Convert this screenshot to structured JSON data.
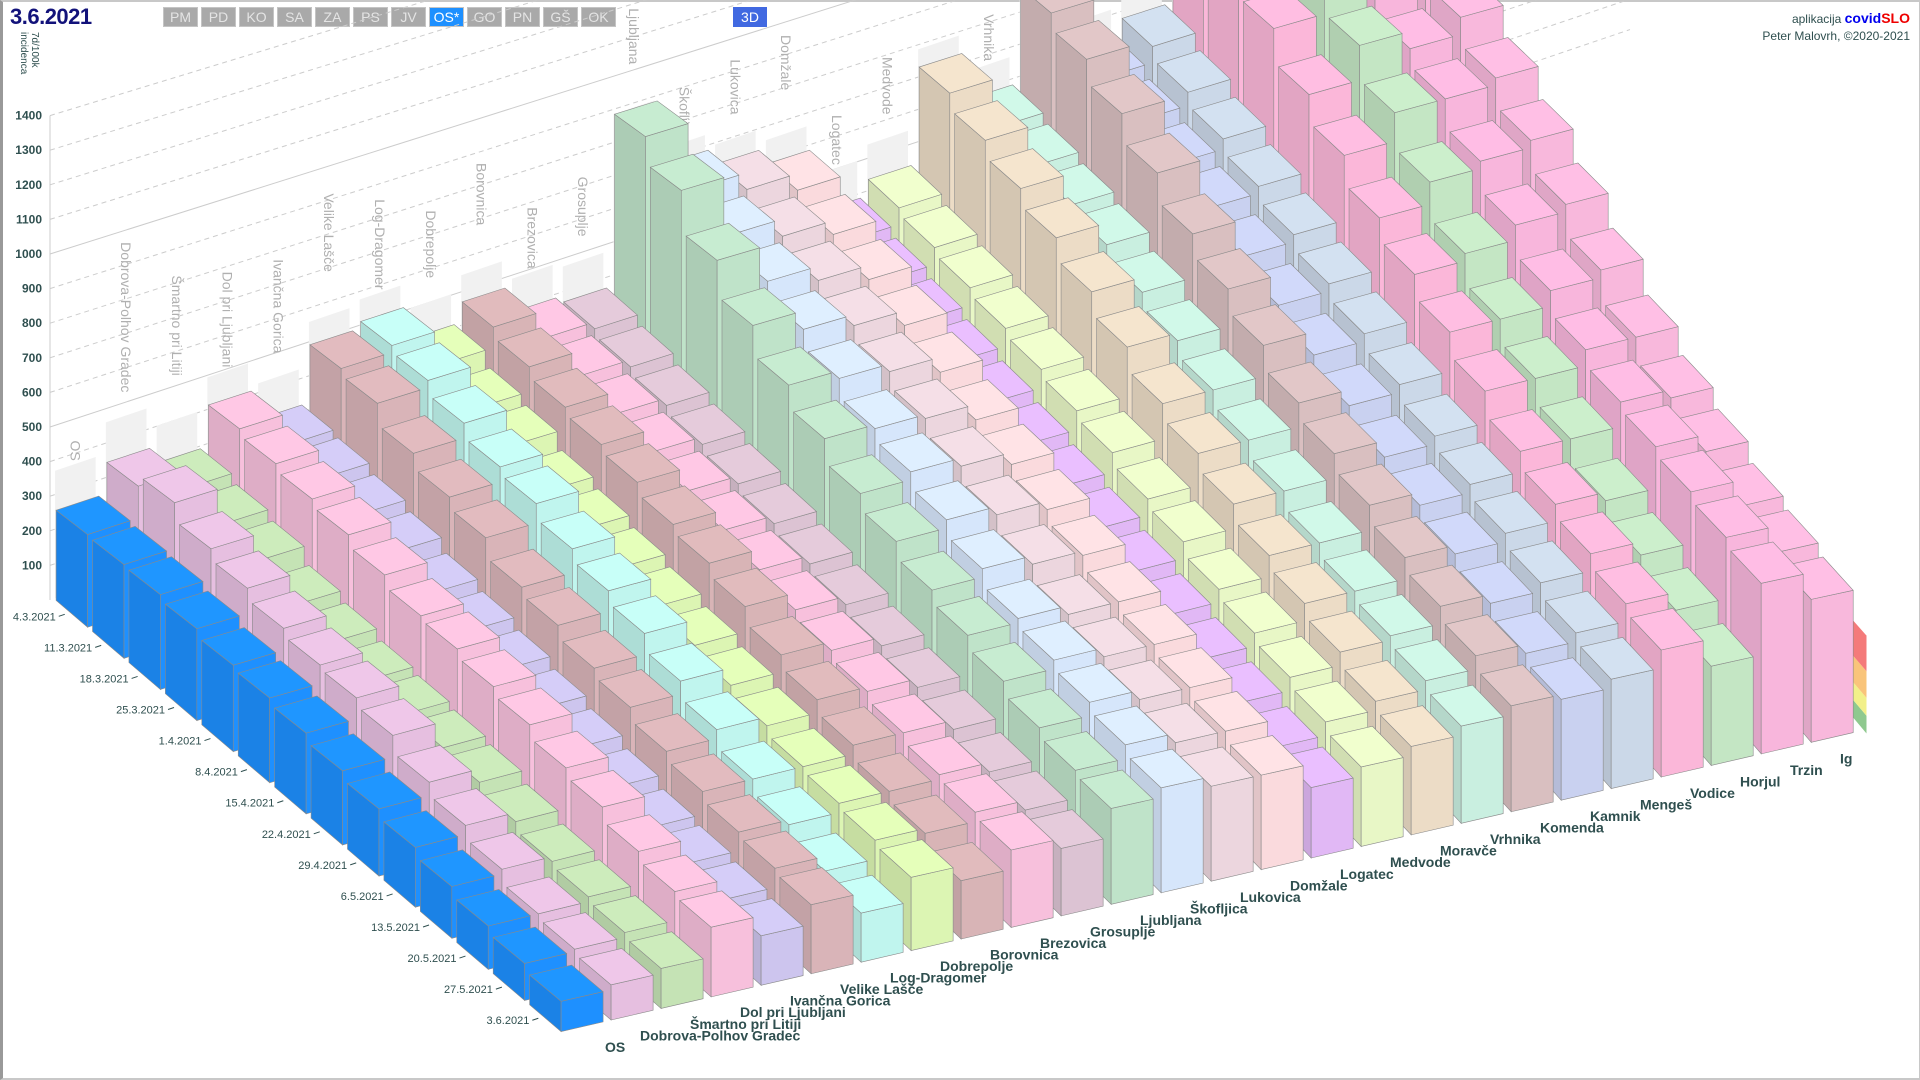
{
  "header": {
    "date": "3.6.2021",
    "region_buttons": [
      "PM",
      "PD",
      "KO",
      "SA",
      "ZA",
      "PS",
      "JV",
      "OS*",
      "GO",
      "PN",
      "GŠ",
      "OK"
    ],
    "active_region": "OS*",
    "view_button": "3D",
    "credit_prefix": "aplikacija",
    "credit_brand_a": "covid",
    "credit_brand_b": "SLO",
    "credit_author": "Peter Malovrh, ©2020-2021"
  },
  "chart_data": {
    "type": "bar",
    "subtype": "3d-bar",
    "ylabel_line1": "7d/100k",
    "ylabel_line2": "incidenca",
    "yticks": [
      100,
      200,
      300,
      400,
      500,
      600,
      700,
      800,
      900,
      1000,
      1100,
      1200,
      1300,
      1400
    ],
    "ylim": [
      0,
      1400
    ],
    "dates": [
      "4.3.2021",
      "11.3.2021",
      "18.3.2021",
      "25.3.2021",
      "1.4.2021",
      "8.4.2021",
      "15.4.2021",
      "22.4.2021",
      "29.4.2021",
      "6.5.2021",
      "13.5.2021",
      "20.5.2021",
      "27.5.2021",
      "3.6.2021"
    ],
    "threshold_band_colors": [
      "#8fc98f",
      "#f2f08a",
      "#f9c47a",
      "#f47a7a"
    ],
    "threshold_bands": [
      [
        0,
        40
      ],
      [
        40,
        80
      ],
      [
        80,
        140
      ],
      [
        140,
        220
      ]
    ],
    "series": [
      {
        "name": "OS",
        "color": "#1e90ff",
        "values": [
          260,
          255,
          250,
          235,
          215,
          205,
          190,
          170,
          150,
          130,
          110,
          90,
          75,
          60
        ]
      },
      {
        "name": "Dobrova-Polhov Gradec",
        "color": "#e6bfe0",
        "values": [
          350,
          380,
          330,
          300,
          270,
          250,
          240,
          220,
          180,
          150,
          120,
          90,
          80,
          70
        ]
      },
      {
        "name": "Šmartno pri Litiji",
        "color": "#c5e3b5",
        "values": [
          300,
          280,
          260,
          220,
          200,
          180,
          170,
          160,
          150,
          130,
          110,
          100,
          90,
          80
        ]
      },
      {
        "name": "Dol pri Ljubljani",
        "color": "#f7c0dc",
        "values": [
          420,
          400,
          380,
          360,
          330,
          300,
          290,
          270,
          250,
          220,
          200,
          170,
          150,
          140
        ]
      },
      {
        "name": "Ivančna Gorica",
        "color": "#cdc5ee",
        "values": [
          330,
          320,
          300,
          280,
          250,
          230,
          210,
          190,
          170,
          150,
          130,
          120,
          110,
          100
        ]
      },
      {
        "name": "Velike Lašče",
        "color": "#d9b4b8",
        "values": [
          500,
          480,
          420,
          380,
          350,
          300,
          280,
          250,
          230,
          200,
          180,
          160,
          150,
          140
        ]
      },
      {
        "name": "Log-Dragomer",
        "color": "#c0f5ee",
        "values": [
          520,
          500,
          460,
          420,
          400,
          360,
          330,
          300,
          260,
          220,
          180,
          150,
          120,
          100
        ]
      },
      {
        "name": "Dobrepolje",
        "color": "#dcf5b3",
        "values": [
          420,
          380,
          360,
          320,
          300,
          280,
          260,
          240,
          220,
          200,
          180,
          170,
          160,
          150
        ]
      },
      {
        "name": "Borovnica",
        "color": "#d8b4b6",
        "values": [
          480,
          450,
          420,
          400,
          380,
          350,
          330,
          300,
          260,
          230,
          200,
          170,
          150,
          120
        ]
      },
      {
        "name": "Brezovica",
        "color": "#f7c0dc",
        "values": [
          400,
          380,
          360,
          340,
          320,
          300,
          280,
          260,
          240,
          220,
          200,
          180,
          170,
          160
        ]
      },
      {
        "name": "Grosuplje",
        "color": "#dcc3d3",
        "values": [
          380,
          360,
          340,
          320,
          300,
          280,
          260,
          240,
          220,
          200,
          180,
          160,
          150,
          140
        ]
      },
      {
        "name": "Ljubljana",
        "color": "#bfe3c9",
        "values": [
          900,
          820,
          700,
          600,
          520,
          460,
          400,
          360,
          320,
          290,
          260,
          230,
          210,
          200
        ]
      },
      {
        "name": "Škofljica",
        "color": "#d6e6fb",
        "values": [
          700,
          650,
          600,
          550,
          500,
          450,
          420,
          380,
          340,
          300,
          280,
          260,
          240,
          220
        ]
      },
      {
        "name": "Lukovica",
        "color": "#ecd6de",
        "values": [
          650,
          600,
          560,
          520,
          480,
          440,
          400,
          360,
          320,
          280,
          260,
          240,
          220,
          200
        ]
      },
      {
        "name": "Domžale",
        "color": "#fadadd",
        "values": [
          600,
          560,
          520,
          480,
          440,
          400,
          370,
          340,
          310,
          280,
          260,
          240,
          220,
          200
        ]
      },
      {
        "name": "Logatec",
        "color": "#e1b8f5",
        "values": [
          400,
          380,
          360,
          340,
          320,
          300,
          280,
          260,
          240,
          220,
          200,
          180,
          160,
          150
        ]
      },
      {
        "name": "Medvode",
        "color": "#e8f7c6",
        "values": [
          450,
          430,
          410,
          390,
          370,
          350,
          330,
          300,
          280,
          250,
          230,
          210,
          190,
          170
        ]
      },
      {
        "name": "Moravče",
        "color": "#ecdcc6",
        "values": [
          750,
          700,
          650,
          600,
          540,
          480,
          420,
          380,
          340,
          300,
          270,
          240,
          210,
          190
        ]
      },
      {
        "name": "Vrhnika",
        "color": "#c9efe0",
        "values": [
          600,
          580,
          560,
          540,
          500,
          460,
          420,
          380,
          340,
          300,
          270,
          250,
          230,
          210
        ]
      },
      {
        "name": "Komenda",
        "color": "#d9bfc0",
        "values": [
          900,
          850,
          780,
          700,
          620,
          560,
          500,
          440,
          400,
          360,
          320,
          290,
          260,
          230
        ]
      },
      {
        "name": "Kamnik",
        "color": "#c9d1f0",
        "values": [
          650,
          620,
          590,
          560,
          520,
          480,
          440,
          400,
          360,
          330,
          300,
          270,
          240,
          220
        ]
      },
      {
        "name": "Mengeš",
        "color": "#cbd8e8",
        "values": [
          700,
          660,
          620,
          580,
          540,
          500,
          460,
          420,
          380,
          350,
          320,
          290,
          260,
          240
        ]
      },
      {
        "name": "Vodice",
        "color": "#fbb7d9",
        "values": [
          1100,
          1000,
          900,
          800,
          720,
          640,
          580,
          520,
          460,
          400,
          360,
          330,
          300,
          280
        ]
      },
      {
        "name": "Horjul",
        "color": "#c4e6c4",
        "values": [
          1200,
          1300,
          1100,
          900,
          800,
          700,
          600,
          520,
          460,
          400,
          340,
          300,
          260,
          220
        ]
      },
      {
        "name": "Trzin",
        "color": "#f8b6dc",
        "values": [
          1000,
          950,
          900,
          850,
          800,
          720,
          640,
          560,
          500,
          460,
          440,
          420,
          400,
          380
        ]
      },
      {
        "name": "Ig",
        "color": "#f8b8dc",
        "values": [
          1150,
          1100,
          1000,
          900,
          820,
          740,
          660,
          580,
          500,
          440,
          400,
          360,
          340,
          320
        ]
      }
    ]
  }
}
